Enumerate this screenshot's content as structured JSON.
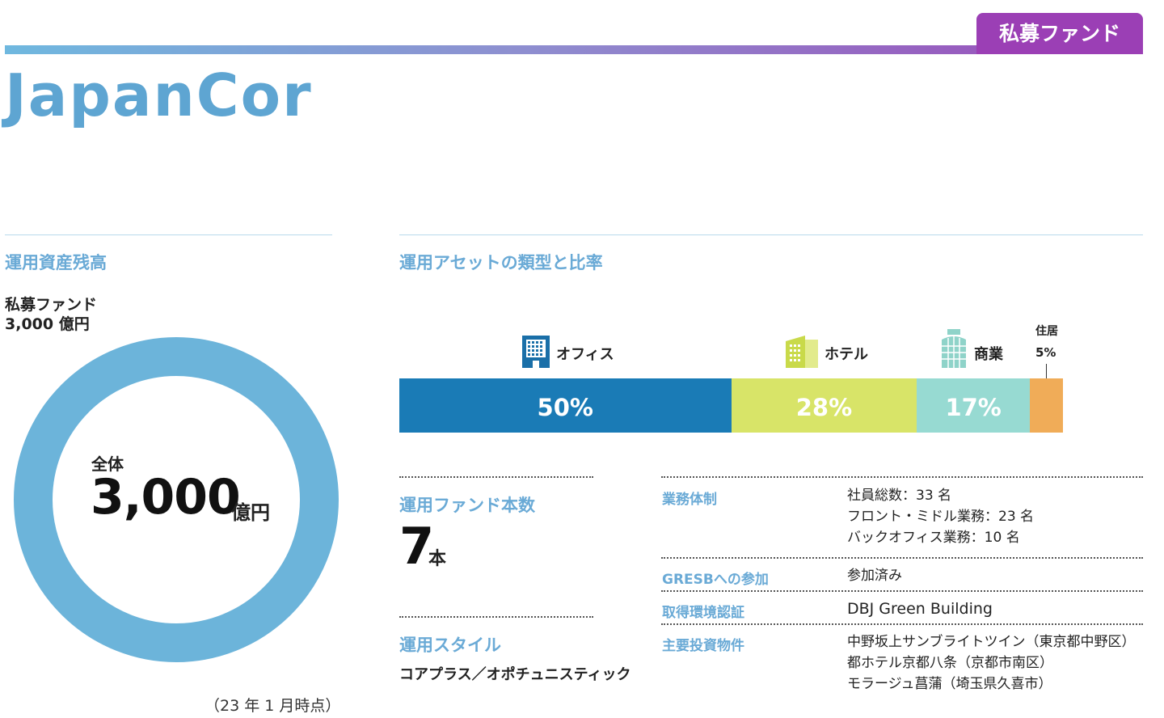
{
  "header": {
    "tag": "私募ファンド",
    "brand": "JapanCor"
  },
  "aum": {
    "section_title": "運用資産残高",
    "fund_type": "私募ファンド",
    "fund_amount": "3,000 億円",
    "total_label": "全体",
    "total_value": "3,000",
    "total_unit": "億円",
    "as_of": "（23 年 1 月時点）",
    "ring_color": "#6cb4da"
  },
  "assets": {
    "section_title": "運用アセットの類型と比率",
    "chart_data": {
      "type": "bar",
      "orientation": "stacked-horizontal",
      "categories": [
        "オフィス",
        "ホテル",
        "商業",
        "住居"
      ],
      "values": [
        50,
        28,
        17,
        5
      ],
      "value_labels": [
        "50%",
        "28%",
        "17%",
        "5%"
      ],
      "colors": [
        "#1a7bb6",
        "#d8e468",
        "#97dad2",
        "#f0ac58"
      ],
      "icons": [
        "office-building-icon",
        "hotel-building-icon",
        "mall-icon",
        ""
      ]
    }
  },
  "funds": {
    "title": "運用ファンド本数",
    "count": "7",
    "unit": "本"
  },
  "style": {
    "title": "運用スタイル",
    "value": "コアプラス／オポチュニスティック"
  },
  "details": [
    {
      "key": "業務体制",
      "lines": [
        "社員総数：33 名",
        "フロント・ミドル業務：23 名",
        "バックオフィス業務：10 名"
      ]
    },
    {
      "key": "GRESBへの参加",
      "lines": [
        "参加済み"
      ]
    },
    {
      "key": "取得環境認証",
      "lines": [
        "DBJ Green Building"
      ]
    },
    {
      "key": "主要投資物件",
      "lines": [
        "中野坂上サンブライトツイン（東京都中野区）",
        "都ホテル京都八条（京都市南区）",
        "モラージュ菖蒲（埼玉県久喜市）"
      ]
    }
  ]
}
